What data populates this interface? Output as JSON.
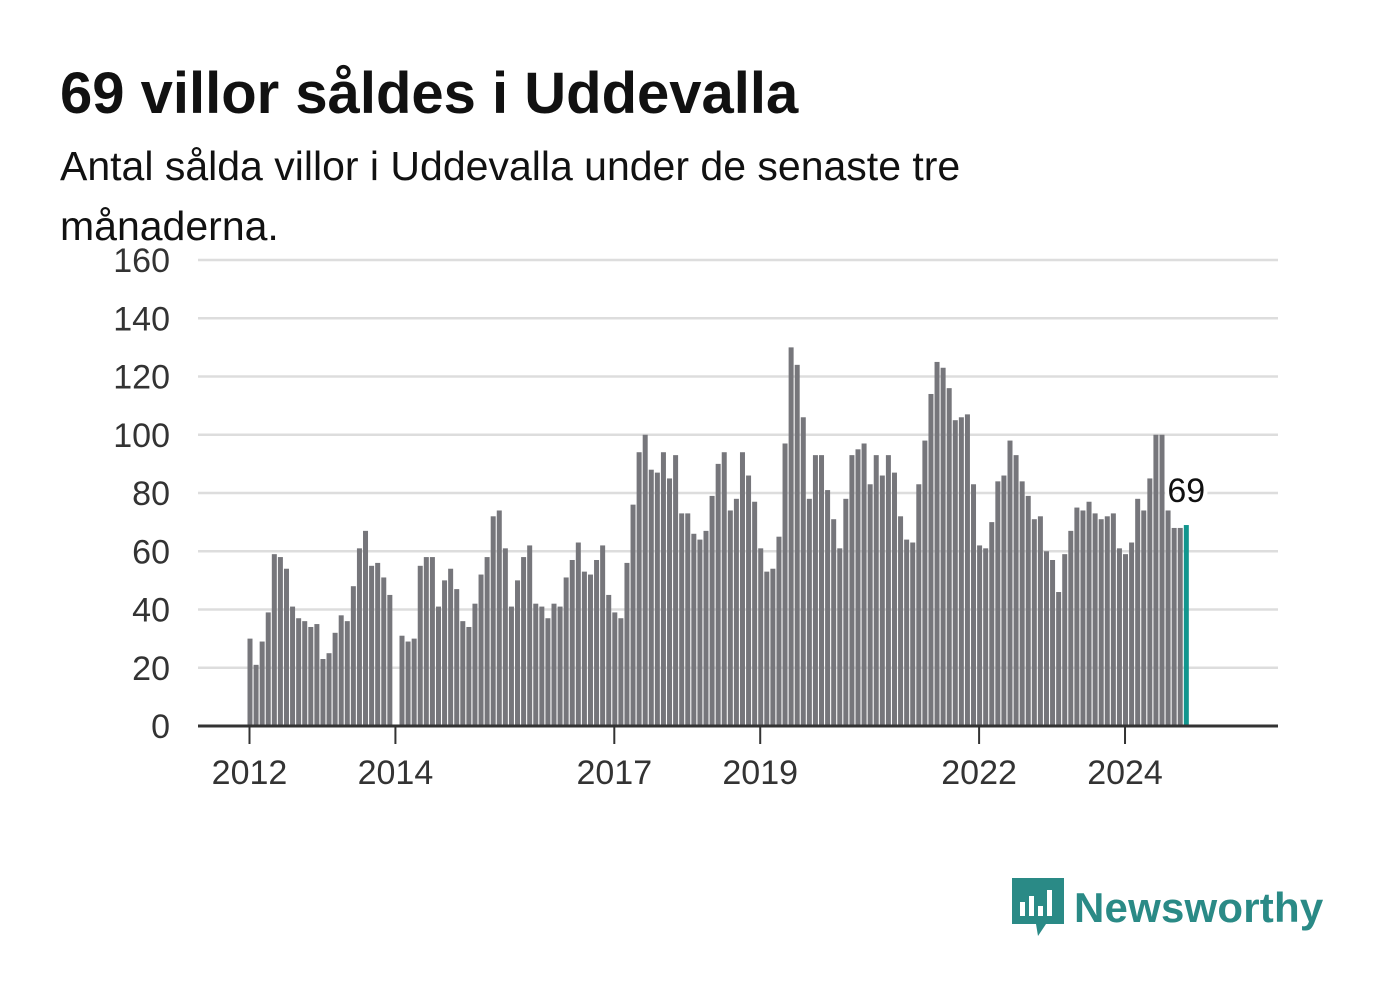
{
  "header": {
    "title": "69 villor såldes i Uddevalla",
    "subtitle": "Antal sålda villor i Uddevalla under de senaste tre månaderna."
  },
  "brand": {
    "name": "Newsworthy",
    "icon": "newsworthy-logo-icon"
  },
  "colors": {
    "bar": "#76767b",
    "highlight": "#12968e",
    "grid": "#dddddd",
    "axis": "#333333",
    "brand": "#2a8a86"
  },
  "chart_data": {
    "type": "bar",
    "title": "69 villor såldes i Uddevalla",
    "subtitle": "Antal sålda villor i Uddevalla under de senaste tre månaderna.",
    "xlabel": "",
    "ylabel": "",
    "ylim": [
      0,
      160
    ],
    "yticks": [
      0,
      20,
      40,
      60,
      80,
      100,
      120,
      140,
      160
    ],
    "xticks": [
      "2012",
      "2014",
      "2017",
      "2019",
      "2022",
      "2024"
    ],
    "grid": true,
    "x_start": "2012-01",
    "highlight": {
      "label": "69",
      "value": 69
    },
    "values": [
      30,
      21,
      29,
      39,
      59,
      58,
      54,
      41,
      37,
      36,
      34,
      35,
      23,
      25,
      32,
      38,
      36,
      48,
      61,
      67,
      55,
      56,
      51,
      45,
      null,
      31,
      29,
      30,
      55,
      58,
      58,
      41,
      50,
      54,
      47,
      36,
      34,
      42,
      52,
      58,
      72,
      74,
      61,
      41,
      50,
      58,
      62,
      42,
      41,
      37,
      42,
      41,
      51,
      57,
      63,
      53,
      52,
      57,
      62,
      45,
      39,
      37,
      56,
      76,
      94,
      100,
      88,
      87,
      94,
      85,
      93,
      73,
      73,
      66,
      64,
      67,
      79,
      90,
      94,
      74,
      78,
      94,
      86,
      77,
      61,
      53,
      54,
      65,
      97,
      130,
      124,
      106,
      78,
      93,
      93,
      81,
      71,
      61,
      78,
      93,
      95,
      97,
      83,
      93,
      86,
      93,
      87,
      72,
      64,
      63,
      83,
      98,
      114,
      125,
      123,
      116,
      105,
      106,
      107,
      83,
      62,
      61,
      70,
      84,
      86,
      98,
      93,
      84,
      79,
      71,
      72,
      60,
      57,
      46,
      59,
      67,
      75,
      74,
      77,
      73,
      71,
      72,
      73,
      61,
      59,
      63,
      78,
      74,
      85,
      100,
      100,
      74,
      68,
      68,
      69
    ]
  }
}
